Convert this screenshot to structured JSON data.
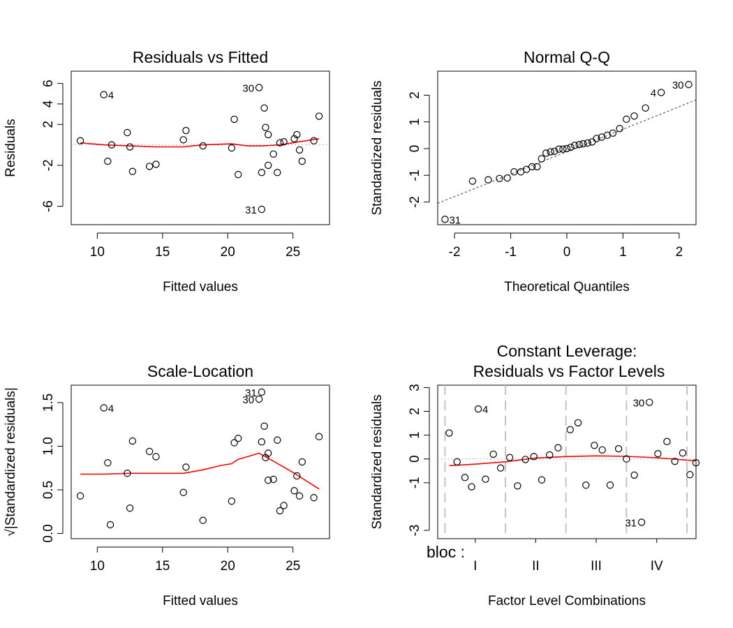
{
  "chart_data": [
    {
      "type": "scatter",
      "title": "Residuals vs Fitted",
      "xlabel": "Fitted values",
      "ylabel": "Residuals",
      "xlim": [
        8,
        27.8
      ],
      "ylim": [
        -7.8,
        7.2
      ],
      "xticks": [
        10,
        15,
        20,
        25
      ],
      "yticks": [
        6,
        4,
        2,
        -2,
        -6
      ],
      "points": [
        [
          8.7,
          0.4
        ],
        [
          10.5,
          4.9
        ],
        [
          10.8,
          -1.6
        ],
        [
          11.1,
          0.0
        ],
        [
          12.3,
          1.2
        ],
        [
          12.5,
          -0.2
        ],
        [
          12.7,
          -2.6
        ],
        [
          14.0,
          -2.1
        ],
        [
          14.5,
          -1.9
        ],
        [
          16.6,
          0.5
        ],
        [
          16.8,
          1.4
        ],
        [
          18.1,
          -0.1
        ],
        [
          20.3,
          -0.3
        ],
        [
          20.5,
          2.5
        ],
        [
          20.8,
          -2.9
        ],
        [
          22.4,
          5.6
        ],
        [
          22.6,
          -2.7
        ],
        [
          22.6,
          -6.3
        ],
        [
          22.8,
          3.6
        ],
        [
          22.9,
          1.7
        ],
        [
          23.1,
          1.0
        ],
        [
          23.1,
          -2.0
        ],
        [
          23.5,
          -0.9
        ],
        [
          23.8,
          -2.7
        ],
        [
          24.0,
          0.2
        ],
        [
          24.3,
          0.3
        ],
        [
          25.1,
          0.6
        ],
        [
          25.3,
          1.0
        ],
        [
          25.5,
          -0.5
        ],
        [
          25.7,
          -1.6
        ],
        [
          26.6,
          0.4
        ],
        [
          27.0,
          2.8
        ]
      ],
      "smooth": [
        [
          8.7,
          0.2
        ],
        [
          10.5,
          0.0
        ],
        [
          12.5,
          -0.1
        ],
        [
          14.5,
          -0.2
        ],
        [
          16.6,
          -0.2
        ],
        [
          18.1,
          0.0
        ],
        [
          20.3,
          0.1
        ],
        [
          21.5,
          -0.1
        ],
        [
          22.6,
          -0.1
        ],
        [
          24.0,
          0.0
        ],
        [
          25.5,
          0.3
        ],
        [
          27.0,
          0.6
        ]
      ],
      "reference_y": 0,
      "point_labels": [
        {
          "label": "4",
          "x": 10.5,
          "y": 4.9
        },
        {
          "label": "30",
          "x": 22.4,
          "y": 5.6
        },
        {
          "label": "31",
          "x": 22.6,
          "y": -6.3
        }
      ]
    },
    {
      "type": "scatter",
      "title": "Normal Q-Q",
      "xlabel": "Theoretical Quantiles",
      "ylabel": "Standardized residuals",
      "xlim": [
        -2.3,
        2.3
      ],
      "ylim": [
        -2.85,
        2.9
      ],
      "xticks": [
        -2,
        -1,
        0,
        1,
        2
      ],
      "yticks": [
        2,
        1,
        0,
        -1,
        -2
      ],
      "points": [
        [
          -2.17,
          -2.65
        ],
        [
          -1.68,
          -1.22
        ],
        [
          -1.4,
          -1.17
        ],
        [
          -1.2,
          -1.12
        ],
        [
          -1.06,
          -1.1
        ],
        [
          -0.94,
          -0.87
        ],
        [
          -0.82,
          -0.87
        ],
        [
          -0.72,
          -0.78
        ],
        [
          -0.62,
          -0.68
        ],
        [
          -0.53,
          -0.68
        ],
        [
          -0.45,
          -0.38
        ],
        [
          -0.37,
          -0.17
        ],
        [
          -0.29,
          -0.12
        ],
        [
          -0.22,
          -0.1
        ],
        [
          -0.14,
          -0.02
        ],
        [
          -0.07,
          -0.02
        ],
        [
          0.0,
          0.0
        ],
        [
          0.07,
          0.05
        ],
        [
          0.14,
          0.12
        ],
        [
          0.22,
          0.15
        ],
        [
          0.29,
          0.18
        ],
        [
          0.37,
          0.21
        ],
        [
          0.45,
          0.25
        ],
        [
          0.53,
          0.38
        ],
        [
          0.62,
          0.43
        ],
        [
          0.72,
          0.5
        ],
        [
          0.82,
          0.58
        ],
        [
          0.94,
          0.75
        ],
        [
          1.06,
          1.1
        ],
        [
          1.2,
          1.22
        ],
        [
          1.4,
          1.52
        ],
        [
          1.68,
          2.1
        ],
        [
          2.17,
          2.4
        ]
      ],
      "reference_line": [
        [
          -2.3,
          -2.05
        ],
        [
          2.3,
          1.82
        ]
      ],
      "point_labels": [
        {
          "label": "31",
          "x": -2.17,
          "y": -2.65
        },
        {
          "label": "4",
          "x": 1.68,
          "y": 2.1
        },
        {
          "label": "30",
          "x": 2.17,
          "y": 2.4
        }
      ]
    },
    {
      "type": "scatter",
      "title": "Scale-Location",
      "xlabel": "Fitted values",
      "ylabel": "√|Standardized residuals|",
      "xlim": [
        8,
        27.8
      ],
      "ylim": [
        -0.06,
        1.7
      ],
      "xticks": [
        10,
        15,
        20,
        25
      ],
      "yticks": [
        "0.0",
        "0.5",
        "1.0",
        "1.5"
      ],
      "points": [
        [
          8.7,
          0.43
        ],
        [
          10.5,
          1.44
        ],
        [
          10.8,
          0.81
        ],
        [
          11.0,
          0.1
        ],
        [
          12.3,
          0.69
        ],
        [
          12.5,
          0.29
        ],
        [
          12.7,
          1.06
        ],
        [
          14.0,
          0.94
        ],
        [
          14.5,
          0.88
        ],
        [
          16.6,
          0.47
        ],
        [
          16.8,
          0.76
        ],
        [
          18.1,
          0.15
        ],
        [
          20.3,
          0.37
        ],
        [
          20.5,
          1.04
        ],
        [
          20.8,
          1.09
        ],
        [
          22.4,
          1.54
        ],
        [
          22.6,
          1.62
        ],
        [
          22.6,
          1.05
        ],
        [
          22.8,
          1.23
        ],
        [
          22.9,
          0.87
        ],
        [
          23.1,
          0.92
        ],
        [
          23.1,
          0.61
        ],
        [
          23.5,
          0.62
        ],
        [
          23.8,
          1.07
        ],
        [
          24.0,
          0.26
        ],
        [
          24.3,
          0.32
        ],
        [
          25.1,
          0.49
        ],
        [
          25.3,
          0.66
        ],
        [
          25.5,
          0.43
        ],
        [
          25.7,
          0.82
        ],
        [
          26.6,
          0.41
        ],
        [
          27.0,
          1.11
        ]
      ],
      "smooth": [
        [
          8.7,
          0.68
        ],
        [
          10.5,
          0.68
        ],
        [
          12.5,
          0.69
        ],
        [
          14.5,
          0.69
        ],
        [
          16.6,
          0.69
        ],
        [
          18.1,
          0.73
        ],
        [
          19.5,
          0.78
        ],
        [
          20.3,
          0.8
        ],
        [
          20.8,
          0.85
        ],
        [
          21.5,
          0.88
        ],
        [
          22.4,
          0.92
        ],
        [
          23.5,
          0.83
        ],
        [
          25.0,
          0.7
        ],
        [
          27.0,
          0.51
        ]
      ],
      "point_labels": [
        {
          "label": "4",
          "x": 10.5,
          "y": 1.44
        },
        {
          "label": "30",
          "x": 22.4,
          "y": 1.54
        },
        {
          "label": "31",
          "x": 22.6,
          "y": 1.62
        }
      ]
    },
    {
      "type": "scatter",
      "title": "Constant Leverage:",
      "subtitle": "Residuals vs Factor Levels",
      "xlabel": "Factor Level Combinations",
      "ylabel": "Standardized residuals",
      "xlim": [
        -0.12,
        4.15
      ],
      "ylim": [
        -3.35,
        3.1
      ],
      "factor_name": "bloc :",
      "factor_levels": [
        "I",
        "II",
        "III",
        "IV"
      ],
      "level_boundaries": [
        0,
        1,
        2,
        3,
        4
      ],
      "yticks": [
        "3",
        "2",
        "1",
        "0",
        "-1",
        "-3"
      ],
      "points": [
        [
          0.07,
          1.09
        ],
        [
          0.2,
          -0.12
        ],
        [
          0.33,
          -0.78
        ],
        [
          0.44,
          -1.17
        ],
        [
          0.55,
          2.1
        ],
        [
          0.67,
          -0.85
        ],
        [
          0.8,
          0.2
        ],
        [
          0.92,
          -0.38
        ],
        [
          1.07,
          0.06
        ],
        [
          1.2,
          -1.13
        ],
        [
          1.33,
          -0.02
        ],
        [
          1.47,
          0.1
        ],
        [
          1.6,
          -0.88
        ],
        [
          1.73,
          0.17
        ],
        [
          1.87,
          0.47
        ],
        [
          2.07,
          1.23
        ],
        [
          2.2,
          1.52
        ],
        [
          2.33,
          -1.1
        ],
        [
          2.47,
          0.57
        ],
        [
          2.6,
          0.38
        ],
        [
          2.73,
          -1.1
        ],
        [
          2.87,
          0.43
        ],
        [
          3.0,
          0.0
        ],
        [
          3.13,
          -0.68
        ],
        [
          3.25,
          -2.66
        ],
        [
          3.38,
          2.38
        ],
        [
          3.52,
          0.22
        ],
        [
          3.67,
          0.73
        ],
        [
          3.8,
          -0.1
        ],
        [
          3.93,
          0.25
        ],
        [
          4.05,
          -0.66
        ],
        [
          4.15,
          -0.16
        ]
      ],
      "smooth": [
        [
          0.07,
          -0.28
        ],
        [
          0.5,
          -0.22
        ],
        [
          1.0,
          -0.12
        ],
        [
          1.5,
          0.04
        ],
        [
          2.0,
          0.1
        ],
        [
          2.5,
          0.13
        ],
        [
          3.0,
          0.11
        ],
        [
          3.5,
          0.05
        ],
        [
          4.15,
          -0.08
        ]
      ],
      "reference_y": 0,
      "point_labels": [
        {
          "label": "4",
          "x": 0.55,
          "y": 2.1
        },
        {
          "label": "30",
          "x": 3.38,
          "y": 2.38
        },
        {
          "label": "31",
          "x": 3.25,
          "y": -2.66
        }
      ]
    }
  ]
}
